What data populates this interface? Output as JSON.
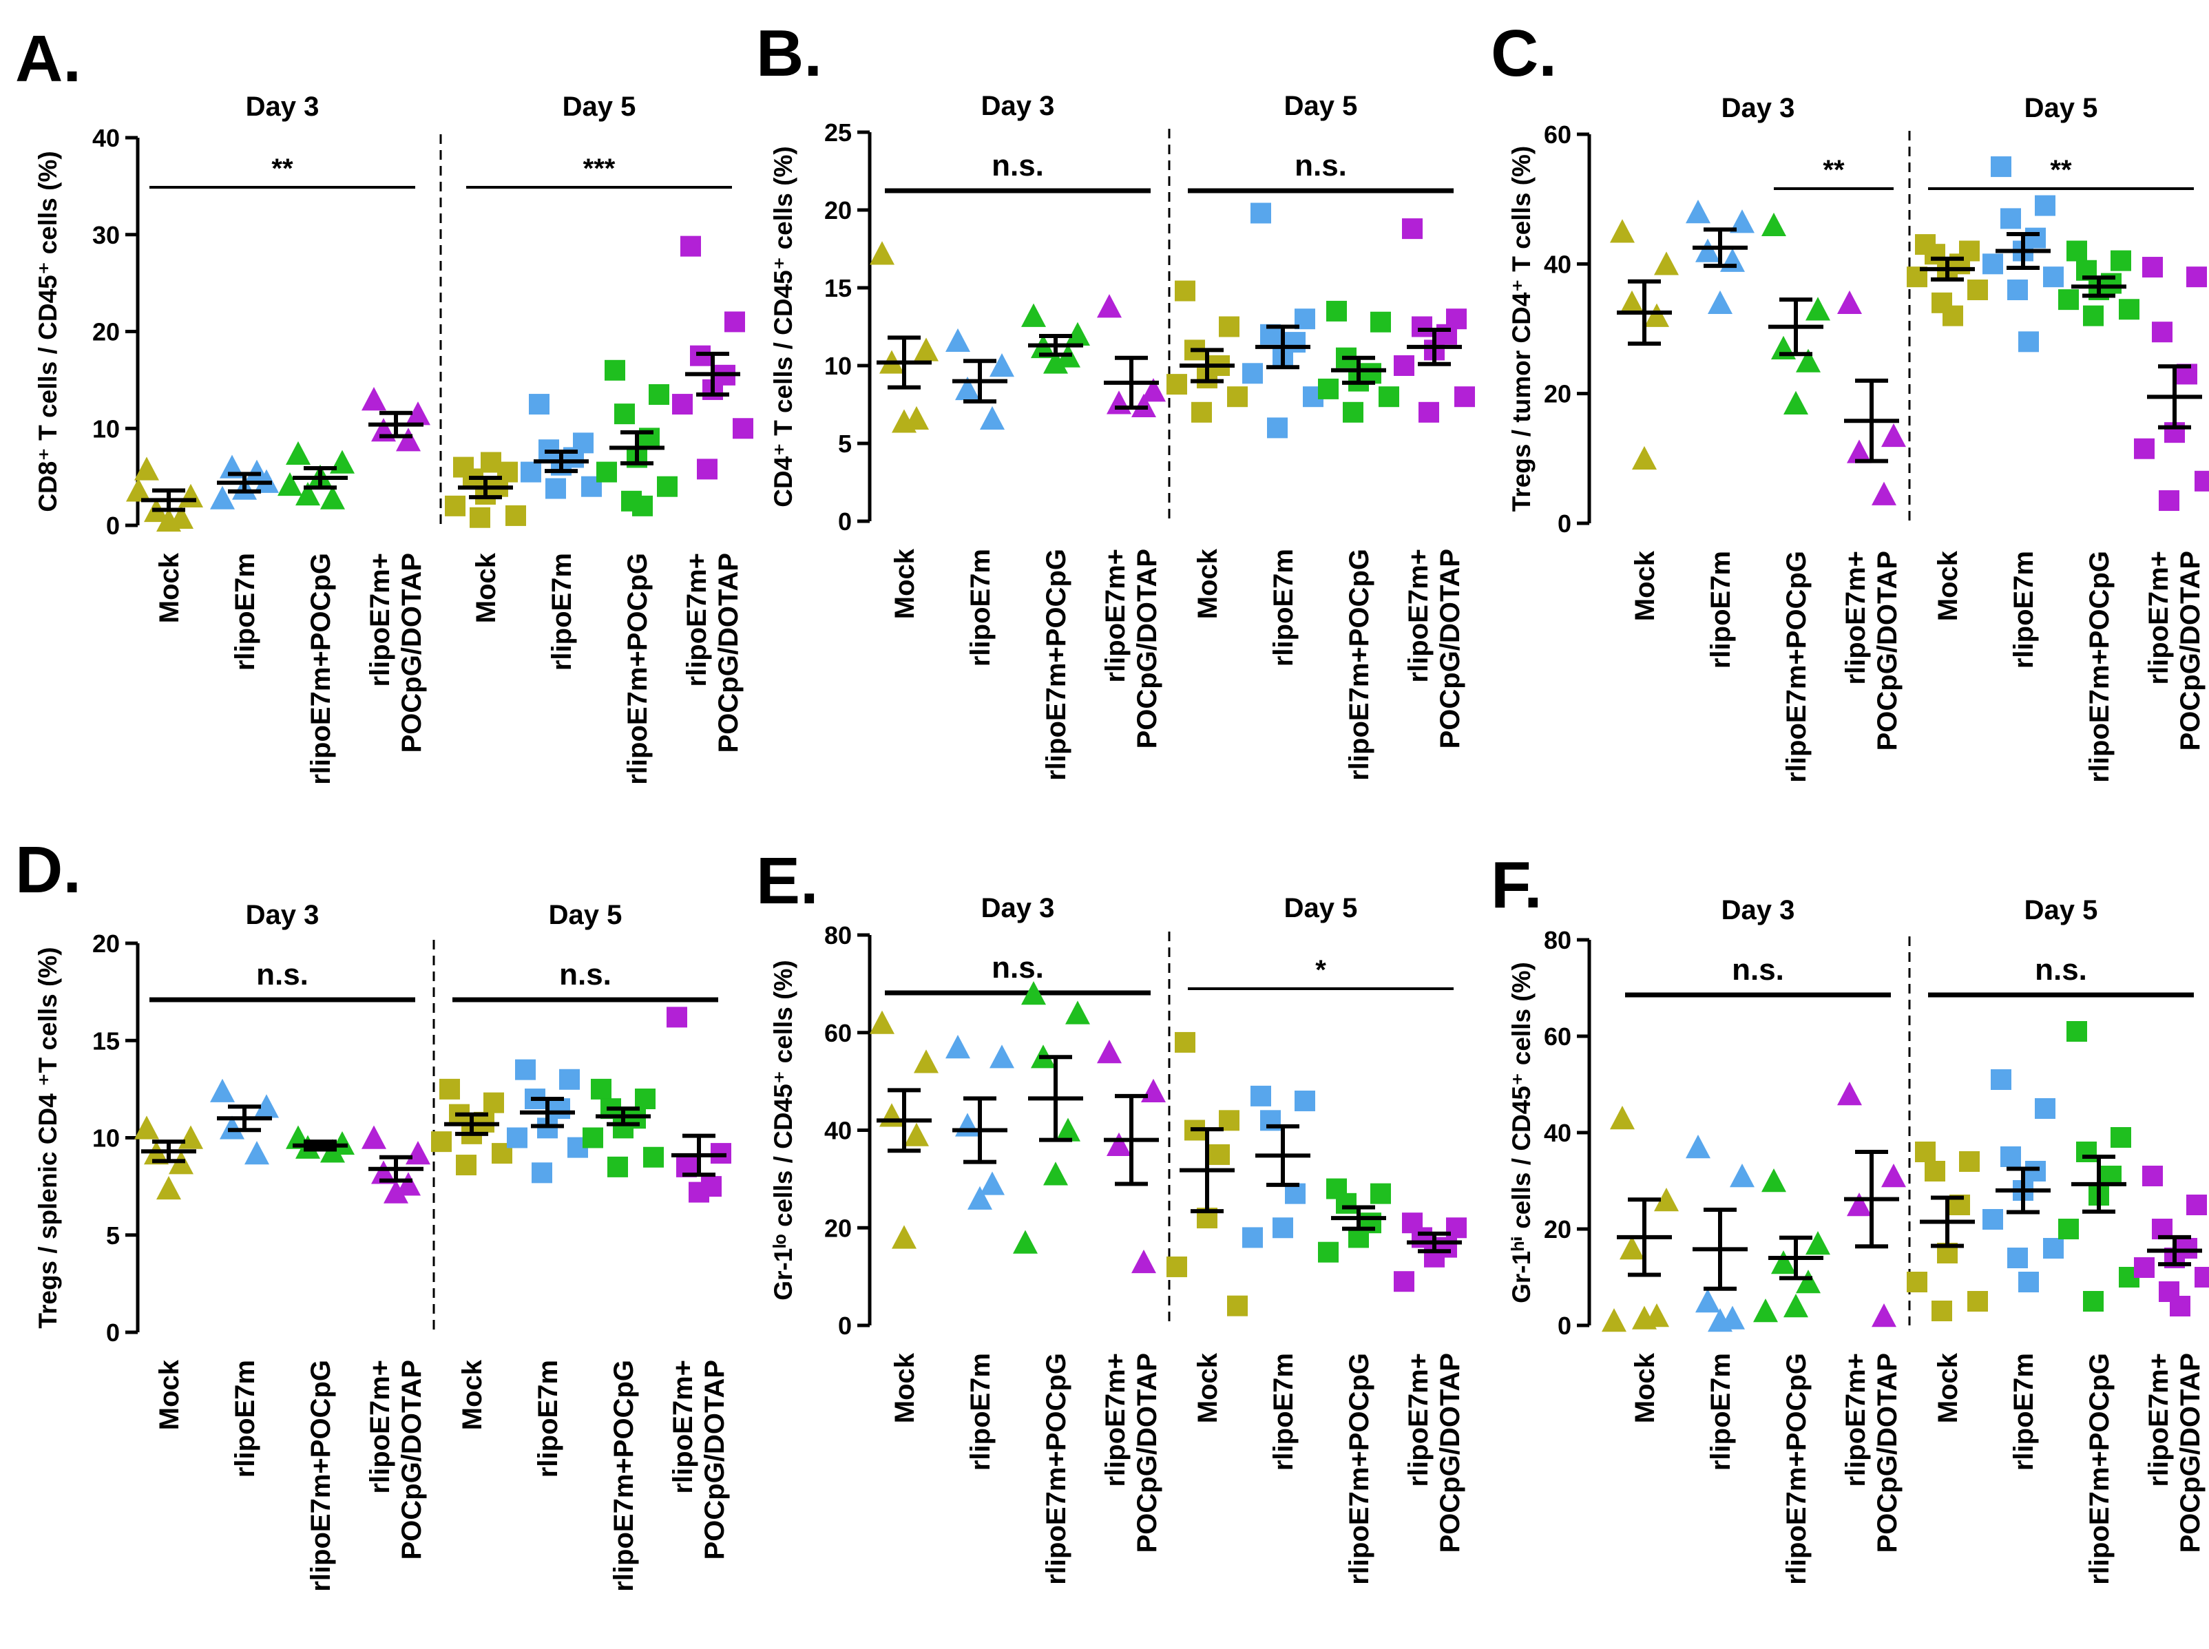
{
  "figure": {
    "colors": {
      "mock": "#b5b01a",
      "e7m": "#58a6ec",
      "pocpg": "#1fbf1f",
      "dotap": "#b221d6"
    }
  },
  "chart_data": [
    {
      "panel": "A.",
      "type": "scatter",
      "ylabel": "CD8⁺ T cells / CD45⁺ cells (%)",
      "ylim": [
        0,
        40
      ],
      "yticks": [
        "0",
        "10",
        "20",
        "30",
        "40"
      ],
      "groups": [
        {
          "day": "Day 3",
          "marker": "triangle",
          "significance": "**",
          "categories": [
            {
              "label": "Mock",
              "color": "#b5b01a",
              "mean": 2.6,
              "sem": 1.0,
              "points": [
                5.8,
                3.0,
                1.5,
                0.8,
                0.5,
                3.6
              ]
            },
            {
              "label": "rlipoE7m",
              "color": "#58a6ec",
              "mean": 4.4,
              "sem": 0.9,
              "points": [
                2.8,
                4.5,
                6.0,
                5.5,
                3.8
              ]
            },
            {
              "label": "rlipoE7m+POCpG",
              "color": "#1fbf1f",
              "mean": 4.9,
              "sem": 1.0,
              "points": [
                7.4,
                6.5,
                3.2,
                2.8,
                5.0,
                4.2
              ]
            },
            {
              "label": "rlipoE7m+ POCpG/DOTAP",
              "color": "#b221d6",
              "mean": 10.4,
              "sem": 1.2,
              "points": [
                13.0,
                11.5,
                9.8,
                8.8
              ]
            }
          ]
        },
        {
          "day": "Day 5",
          "marker": "square",
          "significance": "***",
          "categories": [
            {
              "label": "Mock",
              "color": "#b5b01a",
              "mean": 3.9,
              "sem": 1.0,
              "points": [
                6.0,
                5.5,
                4.8,
                4.0,
                3.2,
                2.0,
                1.0,
                0.8,
                6.5
              ]
            },
            {
              "label": "rlipoE7m",
              "color": "#58a6ec",
              "mean": 6.6,
              "sem": 1.0,
              "points": [
                12.5,
                8.5,
                7.8,
                7.0,
                6.2,
                5.5,
                4.0,
                3.8
              ]
            },
            {
              "label": "rlipoE7m+POCpG",
              "color": "#1fbf1f",
              "mean": 8.0,
              "sem": 1.6,
              "points": [
                16.0,
                13.5,
                11.5,
                9.0,
                7.0,
                5.5,
                4.0,
                2.5,
                2.0
              ]
            },
            {
              "label": "rlipoE7m+ POCpG/DOTAP",
              "color": "#b221d6",
              "mean": 15.6,
              "sem": 2.1,
              "points": [
                28.8,
                21.0,
                17.5,
                15.5,
                14.0,
                12.5,
                10.0,
                5.8
              ]
            }
          ]
        }
      ]
    },
    {
      "panel": "B.",
      "type": "scatter",
      "ylabel": "CD4⁺ T cells / CD45⁺ cells (%)",
      "ylim": [
        0,
        25
      ],
      "yticks": [
        "0",
        "5",
        "10",
        "15",
        "20",
        "25"
      ],
      "groups": [
        {
          "day": "Day 3",
          "marker": "triangle",
          "significance": "n.s.",
          "categories": [
            {
              "label": "Mock",
              "color": "#b5b01a",
              "mean": 10.2,
              "sem": 1.6,
              "points": [
                17.2,
                11.0,
                10.2,
                6.6,
                6.4
              ]
            },
            {
              "label": "rlipoE7m",
              "color": "#58a6ec",
              "mean": 9.0,
              "sem": 1.3,
              "points": [
                11.6,
                10.0,
                8.5,
                6.6
              ]
            },
            {
              "label": "rlipoE7m+POCpG",
              "color": "#1fbf1f",
              "mean": 11.3,
              "sem": 0.6,
              "points": [
                13.2,
                12.0,
                11.2,
                10.6,
                10.2
              ]
            },
            {
              "label": "rlipoE7m+ POCpG/DOTAP",
              "color": "#b221d6",
              "mean": 8.9,
              "sem": 1.6,
              "points": [
                13.8,
                8.4,
                7.6,
                7.4
              ]
            }
          ]
        },
        {
          "day": "Day 5",
          "marker": "square",
          "significance": "n.s.",
          "categories": [
            {
              "label": "Mock",
              "color": "#b5b01a",
              "mean": 10.0,
              "sem": 1.0,
              "points": [
                14.8,
                12.5,
                11.0,
                10.0,
                9.2,
                8.8,
                8.0,
                7.0
              ]
            },
            {
              "label": "rlipoE7m",
              "color": "#58a6ec",
              "mean": 11.2,
              "sem": 1.3,
              "points": [
                19.8,
                13.0,
                12.0,
                11.5,
                10.5,
                9.5,
                8.0,
                6.0
              ]
            },
            {
              "label": "rlipoE7m+POCpG",
              "color": "#1fbf1f",
              "mean": 9.7,
              "sem": 0.8,
              "points": [
                13.5,
                12.8,
                10.5,
                9.5,
                9.0,
                8.5,
                8.0,
                7.0
              ]
            },
            {
              "label": "rlipoE7m+ POCpG/DOTAP",
              "color": "#b221d6",
              "mean": 11.2,
              "sem": 1.1,
              "points": [
                18.8,
                13.0,
                12.5,
                12.0,
                11.0,
                10.0,
                8.0,
                7.0
              ]
            }
          ]
        }
      ]
    },
    {
      "panel": "C.",
      "type": "scatter",
      "ylabel": "Tregs / tumor CD4⁺ T cells (%)",
      "ylim": [
        0,
        60
      ],
      "yticks": [
        "0",
        "20",
        "40",
        "60"
      ],
      "groups": [
        {
          "day": "Day 3",
          "marker": "triangle",
          "significance": "**",
          "sig_categories": [
            2,
            3
          ],
          "categories": [
            {
              "label": "Mock",
              "color": "#b5b01a",
              "mean": 32.5,
              "sem": 4.8,
              "points": [
                45.0,
                40.0,
                34.0,
                32.0,
                10.0
              ]
            },
            {
              "label": "rlipoE7m",
              "color": "#58a6ec",
              "mean": 42.5,
              "sem": 2.8,
              "points": [
                48.0,
                46.5,
                42.0,
                40.5,
                34.0
              ]
            },
            {
              "label": "rlipoE7m+POCpG",
              "color": "#1fbf1f",
              "mean": 30.3,
              "sem": 4.2,
              "points": [
                46.0,
                33.0,
                27.0,
                25.0,
                18.5
              ]
            },
            {
              "label": "rlipoE7m+ POCpG/DOTAP",
              "color": "#b221d6",
              "mean": 15.8,
              "sem": 6.2,
              "points": [
                34.0,
                13.5,
                11.0,
                4.5
              ]
            }
          ]
        },
        {
          "day": "Day 5",
          "marker": "square",
          "significance": "**",
          "categories": [
            {
              "label": "Mock",
              "color": "#b5b01a",
              "mean": 39.2,
              "sem": 1.6,
              "points": [
                43.0,
                42.0,
                41.5,
                40.0,
                39.0,
                38.0,
                36.0,
                34.0,
                32.0
              ]
            },
            {
              "label": "rlipoE7m",
              "color": "#58a6ec",
              "mean": 42.0,
              "sem": 2.6,
              "points": [
                55.0,
                49.0,
                47.0,
                44.0,
                42.0,
                40.0,
                38.0,
                36.0,
                28.0
              ]
            },
            {
              "label": "rlipoE7m+POCpG",
              "color": "#1fbf1f",
              "mean": 36.5,
              "sem": 1.4,
              "points": [
                42.0,
                40.5,
                39.0,
                37.0,
                36.0,
                34.5,
                33.0,
                32.0
              ]
            },
            {
              "label": "rlipoE7m+ POCpG/DOTAP",
              "color": "#b221d6",
              "mean": 19.5,
              "sem": 4.7,
              "points": [
                39.5,
                38.0,
                29.5,
                23.0,
                14.0,
                11.5,
                6.5,
                3.5
              ]
            }
          ]
        }
      ]
    },
    {
      "panel": "D.",
      "type": "scatter",
      "ylabel": "Tregs / splenic CD4 ⁺T cells (%)",
      "ylim": [
        0,
        20
      ],
      "yticks": [
        "0",
        "5",
        "10",
        "15",
        "20"
      ],
      "groups": [
        {
          "day": "Day 3",
          "marker": "triangle",
          "significance": "n.s.",
          "categories": [
            {
              "label": "Mock",
              "color": "#b5b01a",
              "mean": 9.3,
              "sem": 0.5,
              "points": [
                10.5,
                10.0,
                9.2,
                8.7,
                7.4
              ]
            },
            {
              "label": "rlipoE7m",
              "color": "#58a6ec",
              "mean": 11.0,
              "sem": 0.6,
              "points": [
                12.4,
                11.6,
                10.5,
                9.2
              ]
            },
            {
              "label": "rlipoE7m+POCpG",
              "color": "#1fbf1f",
              "mean": 9.6,
              "sem": 0.2,
              "points": [
                10.0,
                9.7,
                9.5,
                9.3
              ]
            },
            {
              "label": "rlipoE7m+ POCpG/DOTAP",
              "color": "#b221d6",
              "mean": 8.4,
              "sem": 0.6,
              "points": [
                10.0,
                9.2,
                8.2,
                7.6,
                7.2
              ]
            }
          ]
        },
        {
          "day": "Day 5",
          "marker": "square",
          "significance": "n.s.",
          "categories": [
            {
              "label": "Mock",
              "color": "#b5b01a",
              "mean": 10.7,
              "sem": 0.5,
              "points": [
                12.5,
                11.8,
                11.2,
                10.8,
                10.2,
                9.8,
                9.2,
                8.6
              ]
            },
            {
              "label": "rlipoE7m",
              "color": "#58a6ec",
              "mean": 11.3,
              "sem": 0.7,
              "points": [
                13.5,
                13.0,
                12.0,
                11.5,
                10.5,
                10.0,
                9.5,
                8.2
              ]
            },
            {
              "label": "rlipoE7m+POCpG",
              "color": "#1fbf1f",
              "mean": 11.1,
              "sem": 0.4,
              "points": [
                12.5,
                12.0,
                11.5,
                11.0,
                10.5,
                10.0,
                9.0,
                8.5
              ]
            },
            {
              "label": "rlipoE7m+ POCpG/DOTAP",
              "color": "#b221d6",
              "mean": 9.1,
              "sem": 1.0,
              "points": [
                16.2,
                9.2,
                8.5,
                7.5,
                7.2
              ]
            }
          ]
        }
      ]
    },
    {
      "panel": "E.",
      "type": "scatter",
      "ylabel": "Gr-1ˡᵒ cells / CD45⁺ cells (%)",
      "ylim": [
        0,
        80
      ],
      "yticks": [
        "0",
        "20",
        "40",
        "60",
        "80"
      ],
      "groups": [
        {
          "day": "Day 3",
          "marker": "triangle",
          "significance": "n.s.",
          "categories": [
            {
              "label": "Mock",
              "color": "#b5b01a",
              "mean": 42.0,
              "sem": 6.2,
              "points": [
                62.0,
                54.0,
                43.0,
                39.0,
                18.0
              ]
            },
            {
              "label": "rlipoE7m",
              "color": "#58a6ec",
              "mean": 40.0,
              "sem": 6.5,
              "points": [
                57.0,
                55.0,
                41.0,
                29.0,
                26.0
              ]
            },
            {
              "label": "rlipoE7m+POCpG",
              "color": "#1fbf1f",
              "mean": 46.5,
              "sem": 8.5,
              "points": [
                68.0,
                64.0,
                55.0,
                40.0,
                31.0,
                17.0
              ]
            },
            {
              "label": "rlipoE7m+ POCpG/DOTAP",
              "color": "#b221d6",
              "mean": 38.0,
              "sem": 9.0,
              "points": [
                56.0,
                48.0,
                37.0,
                13.0
              ]
            }
          ]
        },
        {
          "day": "Day 5",
          "marker": "square",
          "significance": "*",
          "categories": [
            {
              "label": "Mock",
              "color": "#b5b01a",
              "mean": 31.8,
              "sem": 8.4,
              "points": [
                58.0,
                42.0,
                40.0,
                35.0,
                22.0,
                12.0,
                4.0
              ]
            },
            {
              "label": "rlipoE7m",
              "color": "#58a6ec",
              "mean": 34.8,
              "sem": 6.0,
              "points": [
                47.0,
                46.0,
                42.0,
                27.0,
                20.0,
                18.0
              ]
            },
            {
              "label": "rlipoE7m+POCpG",
              "color": "#1fbf1f",
              "mean": 22.0,
              "sem": 2.2,
              "points": [
                28.0,
                27.0,
                25.0,
                21.0,
                18.0,
                15.0
              ]
            },
            {
              "label": "rlipoE7m+ POCpG/DOTAP",
              "color": "#b221d6",
              "mean": 17.0,
              "sem": 1.8,
              "points": [
                21.0,
                20.0,
                18.0,
                16.0,
                14.0,
                9.0
              ]
            }
          ]
        }
      ]
    },
    {
      "panel": "F.",
      "type": "scatter",
      "ylabel": "Gr-1ʰⁱ cells / CD45⁺ cells (%)",
      "ylim": [
        0,
        80
      ],
      "yticks": [
        "0",
        "20",
        "40",
        "60",
        "80"
      ],
      "groups": [
        {
          "day": "Day 3",
          "marker": "triangle",
          "significance": "n.s.",
          "categories": [
            {
              "label": "Mock",
              "color": "#b5b01a",
              "mean": 18.3,
              "sem": 7.8,
              "points": [
                43.0,
                26.0,
                16.0,
                2.0,
                1.5,
                1.0
              ]
            },
            {
              "label": "rlipoE7m",
              "color": "#58a6ec",
              "mean": 15.8,
              "sem": 8.2,
              "points": [
                37.0,
                31.0,
                5.0,
                1.5,
                1.0
              ]
            },
            {
              "label": "rlipoE7m+POCpG",
              "color": "#1fbf1f",
              "mean": 14.0,
              "sem": 4.2,
              "points": [
                30.0,
                17.0,
                13.0,
                9.0,
                4.0,
                3.0
              ]
            },
            {
              "label": "rlipoE7m+ POCpG/DOTAP",
              "color": "#b221d6",
              "mean": 26.2,
              "sem": 9.8,
              "points": [
                48.0,
                31.0,
                25.0,
                2.0
              ]
            }
          ]
        },
        {
          "day": "Day 5",
          "marker": "square",
          "significance": "n.s.",
          "categories": [
            {
              "label": "Mock",
              "color": "#b5b01a",
              "mean": 21.5,
              "sem": 5.0,
              "points": [
                36.0,
                34.0,
                32.0,
                25.0,
                15.0,
                9.0,
                5.0,
                3.0
              ]
            },
            {
              "label": "rlipoE7m",
              "color": "#58a6ec",
              "mean": 28.0,
              "sem": 4.5,
              "points": [
                51.0,
                45.0,
                35.0,
                32.0,
                28.0,
                22.0,
                16.0,
                14.0,
                9.0
              ]
            },
            {
              "label": "rlipoE7m+POCpG",
              "color": "#1fbf1f",
              "mean": 29.3,
              "sem": 5.7,
              "points": [
                61.0,
                39.0,
                36.0,
                31.0,
                27.0,
                20.0,
                10.0,
                5.0
              ]
            },
            {
              "label": "rlipoE7m+ POCpG/DOTAP",
              "color": "#b221d6",
              "mean": 15.5,
              "sem": 2.8,
              "points": [
                31.0,
                25.0,
                20.0,
                16.0,
                14.0,
                12.0,
                10.0,
                7.0,
                4.0
              ]
            }
          ]
        }
      ]
    }
  ]
}
